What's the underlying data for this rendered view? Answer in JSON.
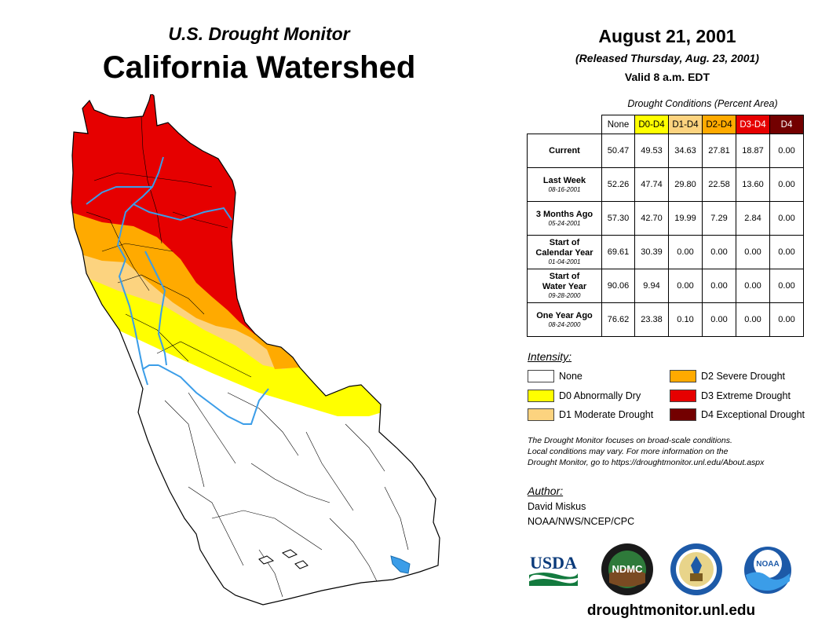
{
  "header": {
    "subtitle": "U.S. Drought Monitor",
    "title": "California Watershed",
    "date": "August 21, 2001",
    "released": "(Released Thursday, Aug. 23, 2001)",
    "valid": "Valid 8 a.m. EDT"
  },
  "table": {
    "caption": "Drought Conditions (Percent Area)",
    "columns": [
      {
        "label": "None",
        "color": "#ffffff",
        "text_color": "#000000"
      },
      {
        "label": "D0-D4",
        "color": "#ffff00",
        "text_color": "#000000"
      },
      {
        "label": "D1-D4",
        "color": "#fcd37f",
        "text_color": "#000000"
      },
      {
        "label": "D2-D4",
        "color": "#ffaa00",
        "text_color": "#000000"
      },
      {
        "label": "D3-D4",
        "color": "#e60000",
        "text_color": "#ffffff"
      },
      {
        "label": "D4",
        "color": "#730000",
        "text_color": "#ffffff"
      }
    ],
    "rows": [
      {
        "label": "Current",
        "label2": "",
        "date": "",
        "values": [
          "50.47",
          "49.53",
          "34.63",
          "27.81",
          "18.87",
          "0.00"
        ]
      },
      {
        "label": "Last Week",
        "label2": "",
        "date": "08-16-2001",
        "values": [
          "52.26",
          "47.74",
          "29.80",
          "22.58",
          "13.60",
          "0.00"
        ]
      },
      {
        "label": "3 Months Ago",
        "label2": "",
        "date": "05-24-2001",
        "values": [
          "57.30",
          "42.70",
          "19.99",
          "7.29",
          "2.84",
          "0.00"
        ]
      },
      {
        "label": "Start of",
        "label2": "Calendar Year",
        "date": "01-04-2001",
        "values": [
          "69.61",
          "30.39",
          "0.00",
          "0.00",
          "0.00",
          "0.00"
        ]
      },
      {
        "label": "Start of",
        "label2": "Water Year",
        "date": "09-28-2000",
        "values": [
          "90.06",
          "9.94",
          "0.00",
          "0.00",
          "0.00",
          "0.00"
        ]
      },
      {
        "label": "One Year Ago",
        "label2": "",
        "date": "08-24-2000",
        "values": [
          "76.62",
          "23.38",
          "0.10",
          "0.00",
          "0.00",
          "0.00"
        ]
      }
    ]
  },
  "legend": {
    "heading": "Intensity:",
    "items": [
      {
        "label": "None",
        "color": "#ffffff"
      },
      {
        "label": "D0 Abnormally Dry",
        "color": "#ffff00"
      },
      {
        "label": "D1 Moderate Drought",
        "color": "#fcd37f"
      },
      {
        "label": "D2 Severe Drought",
        "color": "#ffaa00"
      },
      {
        "label": "D3 Extreme Drought",
        "color": "#e60000"
      },
      {
        "label": "D4 Exceptional Drought",
        "color": "#730000"
      }
    ]
  },
  "note": {
    "line1": "The Drought Monitor focuses on broad-scale conditions.",
    "line2": "Local conditions may vary. For more information on the",
    "line3": "Drought Monitor, go to https://droughtmonitor.unl.edu/About.aspx"
  },
  "author": {
    "heading": "Author:",
    "name": "David Miskus",
    "org": "NOAA/NWS/NCEP/CPC"
  },
  "logos": {
    "usda": "USDA",
    "ndmc": "NDMC",
    "noaa": "NOAA"
  },
  "footer": {
    "website": "droughtmonitor.unl.edu"
  },
  "colors": {
    "river": "#3b9de8",
    "d0": "#ffff00",
    "d1": "#fcd37f",
    "d2": "#ffaa00",
    "d3": "#e60000"
  }
}
